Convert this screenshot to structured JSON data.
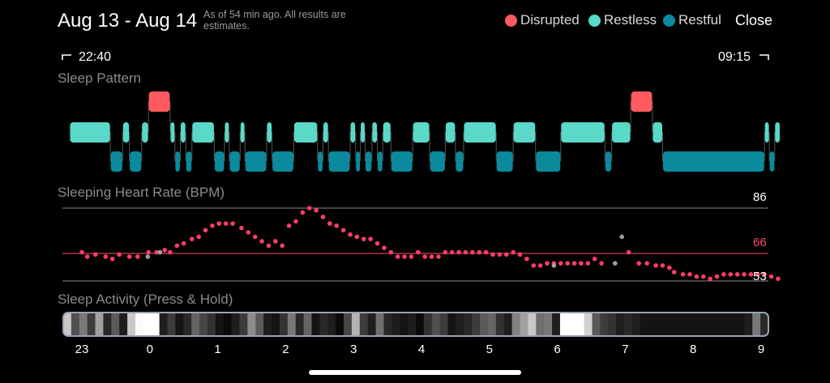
{
  "header": {
    "title": "Aug 13 - Aug 14",
    "subtitle": "As of 54 min ago. All results are estimates.",
    "close_label": "Close"
  },
  "legend": [
    {
      "label": "Disrupted",
      "color": "#ff5a5f"
    },
    {
      "label": "Restless",
      "color": "#5ad9c8"
    },
    {
      "label": "Restful",
      "color": "#0a8a9c"
    }
  ],
  "time_range": {
    "start": "22:40",
    "end": "09:15"
  },
  "sleep_pattern": {
    "title": "Sleep Pattern",
    "segments": [
      {
        "state": "restless",
        "start": 22.82,
        "end": 23.42
      },
      {
        "state": "restful",
        "start": 23.42,
        "end": 23.6
      },
      {
        "state": "restless",
        "start": 23.6,
        "end": 23.7
      },
      {
        "state": "restful",
        "start": 23.7,
        "end": 23.88
      },
      {
        "state": "restless",
        "start": 23.88,
        "end": 23.98
      },
      {
        "state": "disrupted",
        "start": 23.98,
        "end": 24.3
      },
      {
        "state": "restless",
        "start": 24.3,
        "end": 24.37
      },
      {
        "state": "restful",
        "start": 24.37,
        "end": 24.45
      },
      {
        "state": "restless",
        "start": 24.45,
        "end": 24.53
      },
      {
        "state": "restful",
        "start": 24.53,
        "end": 24.62
      },
      {
        "state": "restless",
        "start": 24.62,
        "end": 24.95
      },
      {
        "state": "restful",
        "start": 24.95,
        "end": 25.1
      },
      {
        "state": "restless",
        "start": 25.1,
        "end": 25.17
      },
      {
        "state": "restful",
        "start": 25.17,
        "end": 25.33
      },
      {
        "state": "restless",
        "start": 25.33,
        "end": 25.4
      },
      {
        "state": "restful",
        "start": 25.4,
        "end": 25.72
      },
      {
        "state": "restless",
        "start": 25.72,
        "end": 25.8
      },
      {
        "state": "restful",
        "start": 25.8,
        "end": 26.12
      },
      {
        "state": "restless",
        "start": 26.12,
        "end": 26.47
      },
      {
        "state": "restful",
        "start": 26.47,
        "end": 26.55
      },
      {
        "state": "restless",
        "start": 26.55,
        "end": 26.63
      },
      {
        "state": "restful",
        "start": 26.63,
        "end": 26.95
      },
      {
        "state": "restless",
        "start": 26.95,
        "end": 27.03
      },
      {
        "state": "restful",
        "start": 27.03,
        "end": 27.1
      },
      {
        "state": "restless",
        "start": 27.1,
        "end": 27.17
      },
      {
        "state": "restful",
        "start": 27.17,
        "end": 27.27
      },
      {
        "state": "restless",
        "start": 27.27,
        "end": 27.35
      },
      {
        "state": "restful",
        "start": 27.35,
        "end": 27.43
      },
      {
        "state": "restless",
        "start": 27.43,
        "end": 27.55
      },
      {
        "state": "restful",
        "start": 27.55,
        "end": 27.87
      },
      {
        "state": "restless",
        "start": 27.87,
        "end": 28.12
      },
      {
        "state": "restful",
        "start": 28.12,
        "end": 28.35
      },
      {
        "state": "restless",
        "start": 28.35,
        "end": 28.5
      },
      {
        "state": "restful",
        "start": 28.5,
        "end": 28.62
      },
      {
        "state": "restless",
        "start": 28.62,
        "end": 29.1
      },
      {
        "state": "restful",
        "start": 29.1,
        "end": 29.35
      },
      {
        "state": "restless",
        "start": 29.35,
        "end": 29.68
      },
      {
        "state": "restful",
        "start": 29.68,
        "end": 30.05
      },
      {
        "state": "restless",
        "start": 30.05,
        "end": 30.7
      },
      {
        "state": "restful",
        "start": 30.7,
        "end": 30.8
      },
      {
        "state": "restless",
        "start": 30.8,
        "end": 31.08
      },
      {
        "state": "disrupted",
        "start": 31.08,
        "end": 31.4
      },
      {
        "state": "restless",
        "start": 31.4,
        "end": 31.55
      },
      {
        "state": "restful",
        "start": 31.55,
        "end": 33.05
      },
      {
        "state": "restless",
        "start": 33.05,
        "end": 33.12
      },
      {
        "state": "restful",
        "start": 33.12,
        "end": 33.2
      },
      {
        "state": "restless",
        "start": 33.2,
        "end": 33.28
      }
    ]
  },
  "heart_rate": {
    "title": "Sleeping Heart Rate (BPM)",
    "max_label": "86",
    "avg_label": "66",
    "min_label": "53",
    "max": 86,
    "avg": 66,
    "min": 53,
    "points": [
      [
        23.0,
        66
      ],
      [
        23.08,
        64
      ],
      [
        23.2,
        65
      ],
      [
        23.35,
        64
      ],
      [
        23.45,
        63
      ],
      [
        23.55,
        65
      ],
      [
        23.7,
        64
      ],
      [
        23.82,
        64
      ],
      [
        23.98,
        66
      ],
      [
        24.1,
        66
      ],
      [
        24.22,
        67
      ],
      [
        24.3,
        66
      ],
      [
        24.4,
        69
      ],
      [
        24.5,
        70
      ],
      [
        24.62,
        72
      ],
      [
        24.72,
        73
      ],
      [
        24.82,
        76
      ],
      [
        24.92,
        78
      ],
      [
        25.02,
        79
      ],
      [
        25.12,
        79
      ],
      [
        25.22,
        79
      ],
      [
        25.35,
        77
      ],
      [
        25.45,
        75
      ],
      [
        25.55,
        73
      ],
      [
        25.65,
        71
      ],
      [
        25.75,
        69
      ],
      [
        25.85,
        71
      ],
      [
        25.95,
        69
      ],
      [
        26.05,
        78
      ],
      [
        26.15,
        80
      ],
      [
        26.25,
        84
      ],
      [
        26.35,
        86
      ],
      [
        26.45,
        85
      ],
      [
        26.55,
        82
      ],
      [
        26.65,
        79
      ],
      [
        26.75,
        78
      ],
      [
        26.85,
        76
      ],
      [
        26.95,
        74
      ],
      [
        27.05,
        73
      ],
      [
        27.15,
        72
      ],
      [
        27.25,
        72
      ],
      [
        27.35,
        70
      ],
      [
        27.45,
        68
      ],
      [
        27.55,
        66
      ],
      [
        27.65,
        64
      ],
      [
        27.75,
        64
      ],
      [
        27.85,
        64
      ],
      [
        27.95,
        66
      ],
      [
        28.05,
        64
      ],
      [
        28.15,
        64
      ],
      [
        28.25,
        64
      ],
      [
        28.35,
        66
      ],
      [
        28.45,
        66
      ],
      [
        28.55,
        66
      ],
      [
        28.65,
        66
      ],
      [
        28.75,
        66
      ],
      [
        28.85,
        66
      ],
      [
        28.95,
        66
      ],
      [
        29.05,
        65
      ],
      [
        29.15,
        65
      ],
      [
        29.25,
        65
      ],
      [
        29.35,
        66
      ],
      [
        29.45,
        65
      ],
      [
        29.55,
        63
      ],
      [
        29.65,
        60
      ],
      [
        29.75,
        60
      ],
      [
        29.85,
        61
      ],
      [
        29.95,
        61
      ],
      [
        30.05,
        61
      ],
      [
        30.15,
        61
      ],
      [
        30.25,
        61
      ],
      [
        30.35,
        61
      ],
      [
        30.45,
        61
      ],
      [
        30.55,
        63
      ],
      [
        30.65,
        61
      ],
      [
        31.05,
        66
      ],
      [
        31.2,
        61
      ],
      [
        31.32,
        61
      ],
      [
        31.45,
        60
      ],
      [
        31.55,
        60
      ],
      [
        31.65,
        59
      ],
      [
        31.72,
        57
      ],
      [
        31.85,
        56
      ],
      [
        31.95,
        56
      ],
      [
        32.05,
        55
      ],
      [
        32.15,
        55
      ],
      [
        32.25,
        54
      ],
      [
        32.35,
        55
      ],
      [
        32.45,
        56
      ],
      [
        32.55,
        56
      ],
      [
        32.65,
        56
      ],
      [
        32.75,
        56
      ],
      [
        32.85,
        56
      ],
      [
        32.95,
        56
      ],
      [
        33.05,
        56
      ],
      [
        33.15,
        55
      ],
      [
        33.25,
        54
      ]
    ],
    "gray_points": [
      [
        23.97,
        64
      ],
      [
        24.15,
        66
      ],
      [
        29.95,
        60
      ],
      [
        30.85,
        61
      ],
      [
        30.95,
        73
      ]
    ]
  },
  "activity": {
    "title": "Sleep Activity (Press & Hold)",
    "stripes": [
      200,
      80,
      120,
      60,
      160,
      40,
      90,
      30,
      200,
      250,
      255,
      255,
      30,
      60,
      20,
      40,
      100,
      70,
      50,
      20,
      10,
      30,
      60,
      140,
      90,
      30,
      20,
      50,
      120,
      40,
      100,
      20,
      40,
      30,
      10,
      70,
      180,
      60,
      30,
      110,
      40,
      30,
      20,
      30,
      10,
      50,
      80,
      60,
      20,
      30,
      40,
      60,
      90,
      100,
      50,
      30,
      130,
      160,
      200,
      110,
      120,
      30,
      255,
      255,
      255,
      210,
      90,
      60,
      50,
      30,
      40,
      30,
      20,
      20,
      20,
      20,
      20,
      20,
      20,
      20,
      20,
      20,
      20,
      20,
      20,
      30,
      120,
      40
    ]
  },
  "x_axis": {
    "ticks": [
      {
        "label": "23",
        "hour": 23
      },
      {
        "label": "0",
        "hour": 24
      },
      {
        "label": "1",
        "hour": 25
      },
      {
        "label": "2",
        "hour": 26
      },
      {
        "label": "3",
        "hour": 27
      },
      {
        "label": "4",
        "hour": 28
      },
      {
        "label": "5",
        "hour": 29
      },
      {
        "label": "6",
        "hour": 30
      },
      {
        "label": "7",
        "hour": 31
      },
      {
        "label": "8",
        "hour": 32
      },
      {
        "label": "9",
        "hour": 33
      }
    ]
  }
}
